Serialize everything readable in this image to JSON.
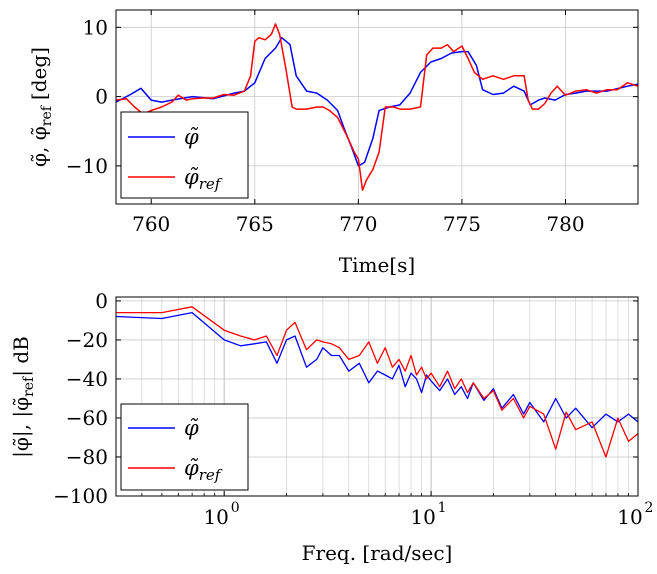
{
  "chart_data": [
    {
      "type": "line",
      "xlabel": "Time[s]",
      "ylabel": "φ̃, φ̃_ref [deg]",
      "ylabel_parts": {
        "a": "φ̃, φ̃",
        "sub": "ref",
        "unit": "[deg]"
      },
      "xlim": [
        758.3,
        783.5
      ],
      "ylim": [
        -15.5,
        12.5
      ],
      "xticks": [
        760,
        765,
        770,
        775,
        780
      ],
      "yticks": [
        -10,
        0,
        10
      ],
      "xtick_labels": [
        "760",
        "765",
        "770",
        "775",
        "780"
      ],
      "ytick_labels": [
        "−10",
        "0",
        "10"
      ],
      "grid": true,
      "legend_position": "bottom-left",
      "series": [
        {
          "name": "φ̃",
          "color": "#0000ff",
          "x": [
            758.3,
            759.0,
            759.5,
            760.0,
            760.5,
            761.0,
            762.0,
            763.0,
            764.0,
            764.5,
            765.0,
            765.5,
            766.0,
            766.3,
            766.7,
            767.0,
            767.5,
            768.0,
            768.5,
            769.0,
            769.3,
            769.7,
            770.0,
            770.3,
            770.7,
            771.0,
            771.5,
            772.0,
            772.5,
            773.0,
            773.5,
            774.0,
            774.5,
            775.0,
            775.3,
            775.7,
            776.0,
            776.5,
            777.0,
            777.5,
            778.0,
            778.3,
            778.7,
            779.0,
            779.5,
            780.0,
            780.5,
            781.0,
            782.0,
            783.0,
            783.5
          ],
          "y": [
            -0.8,
            0.3,
            1.2,
            -0.5,
            -0.8,
            -0.5,
            0.0,
            -0.3,
            0.5,
            0.8,
            2.0,
            5.5,
            7.0,
            8.5,
            7.5,
            3.0,
            0.8,
            0.5,
            -0.5,
            -2.0,
            -4.5,
            -7.5,
            -10.0,
            -9.5,
            -6.0,
            -2.0,
            -1.5,
            -1.2,
            0.5,
            3.5,
            5.0,
            5.5,
            6.3,
            6.5,
            6.5,
            4.5,
            1.0,
            0.3,
            0.5,
            1.5,
            0.8,
            -1.2,
            -0.5,
            -0.2,
            -0.5,
            0.3,
            0.5,
            0.8,
            0.8,
            1.5,
            1.8
          ]
        },
        {
          "name": "φ̃_ref",
          "color": "#ff0000",
          "x": [
            758.3,
            758.8,
            759.2,
            759.6,
            760.0,
            760.5,
            761.0,
            761.3,
            761.7,
            762.0,
            762.5,
            763.0,
            763.5,
            764.0,
            764.5,
            764.8,
            765.0,
            765.2,
            765.5,
            765.8,
            766.0,
            766.2,
            766.5,
            766.8,
            767.0,
            767.5,
            768.0,
            768.3,
            768.6,
            769.0,
            769.5,
            769.8,
            770.0,
            770.2,
            770.4,
            770.7,
            771.0,
            771.3,
            771.7,
            772.0,
            772.5,
            773.0,
            773.3,
            773.6,
            774.0,
            774.3,
            774.6,
            775.0,
            775.3,
            775.6,
            776.0,
            776.5,
            777.0,
            777.5,
            778.0,
            778.2,
            778.4,
            778.7,
            779.0,
            779.3,
            779.6,
            780.0,
            780.5,
            781.0,
            781.5,
            782.0,
            782.5,
            783.0,
            783.5
          ],
          "y": [
            -0.5,
            -0.3,
            -1.5,
            -2.5,
            -2.0,
            -1.5,
            -0.8,
            0.2,
            -0.5,
            -0.3,
            -0.2,
            -0.2,
            0.3,
            0.2,
            0.8,
            3.0,
            8.0,
            8.5,
            8.2,
            9.0,
            10.5,
            9.0,
            4.0,
            -1.5,
            -1.8,
            -1.8,
            -1.5,
            -1.5,
            -2.0,
            -3.0,
            -6.0,
            -8.0,
            -9.0,
            -13.5,
            -12.0,
            -10.5,
            -8.0,
            -1.5,
            -1.5,
            -1.8,
            -1.8,
            -1.5,
            6.0,
            7.0,
            7.0,
            7.5,
            6.5,
            7.3,
            5.5,
            3.5,
            2.5,
            3.0,
            2.5,
            3.0,
            3.0,
            -0.5,
            -1.8,
            -1.8,
            -1.0,
            0.5,
            1.5,
            0.2,
            0.8,
            1.0,
            0.5,
            1.0,
            1.0,
            2.0,
            1.5
          ]
        }
      ]
    },
    {
      "type": "line",
      "xlabel": "Freq. [rad/sec]",
      "ylabel": "|φ̃|, |φ̃_ref| dB",
      "ylabel_parts": {
        "a": "|φ̃|, |φ̃",
        "sub": "ref",
        "unit": "| dB"
      },
      "xscale": "log",
      "xlim": [
        0.3,
        100
      ],
      "ylim": [
        -100,
        2
      ],
      "xticks": [
        1,
        10,
        100
      ],
      "yticks": [
        -100,
        -80,
        -60,
        -40,
        -20,
        0
      ],
      "xtick_labels": [
        "10",
        "10",
        "10"
      ],
      "xtick_exponents": [
        "0",
        "1",
        "2"
      ],
      "ytick_labels": [
        "−100",
        "−80",
        "−60",
        "−40",
        "−20",
        "0"
      ],
      "grid": true,
      "legend_position": "bottom-left",
      "series": [
        {
          "name": "φ̃",
          "color": "#0000ff",
          "x": [
            0.3,
            0.5,
            0.7,
            1.0,
            1.2,
            1.4,
            1.6,
            1.8,
            2.0,
            2.2,
            2.5,
            2.8,
            3.0,
            3.3,
            3.6,
            4.0,
            4.5,
            5.0,
            5.5,
            6.0,
            6.5,
            7.0,
            7.5,
            8.0,
            8.5,
            9.0,
            9.5,
            10,
            11,
            12,
            13,
            14,
            15,
            16,
            18,
            20,
            22,
            25,
            28,
            30,
            35,
            40,
            45,
            50,
            60,
            70,
            80,
            90,
            100
          ],
          "y": [
            -8,
            -9,
            -6,
            -20,
            -23,
            -22,
            -21,
            -32,
            -20,
            -18,
            -34,
            -30,
            -24,
            -28,
            -28,
            -36,
            -32,
            -42,
            -36,
            -38,
            -40,
            -33,
            -44,
            -37,
            -40,
            -47,
            -38,
            -41,
            -46,
            -40,
            -48,
            -44,
            -50,
            -42,
            -51,
            -45,
            -55,
            -48,
            -58,
            -52,
            -62,
            -50,
            -60,
            -55,
            -65,
            -58,
            -62,
            -58,
            -62
          ]
        },
        {
          "name": "φ̃_ref",
          "color": "#ff0000",
          "x": [
            0.3,
            0.5,
            0.7,
            1.0,
            1.2,
            1.4,
            1.6,
            1.8,
            2.0,
            2.2,
            2.5,
            2.8,
            3.0,
            3.3,
            3.6,
            4.0,
            4.5,
            5.0,
            5.5,
            6.0,
            6.5,
            7.0,
            7.5,
            8.0,
            8.5,
            9.0,
            9.5,
            10,
            11,
            12,
            13,
            14,
            15,
            16,
            18,
            20,
            22,
            25,
            28,
            30,
            35,
            40,
            45,
            50,
            60,
            70,
            80,
            90,
            100
          ],
          "y": [
            -6,
            -6,
            -3,
            -15,
            -18,
            -20,
            -18,
            -28,
            -15,
            -11,
            -25,
            -20,
            -21,
            -22,
            -24,
            -30,
            -28,
            -21,
            -32,
            -24,
            -34,
            -30,
            -36,
            -28,
            -38,
            -34,
            -40,
            -37,
            -44,
            -36,
            -45,
            -40,
            -47,
            -42,
            -50,
            -46,
            -56,
            -50,
            -60,
            -54,
            -58,
            -76,
            -57,
            -66,
            -62,
            -80,
            -60,
            -72,
            -68
          ]
        }
      ]
    }
  ]
}
